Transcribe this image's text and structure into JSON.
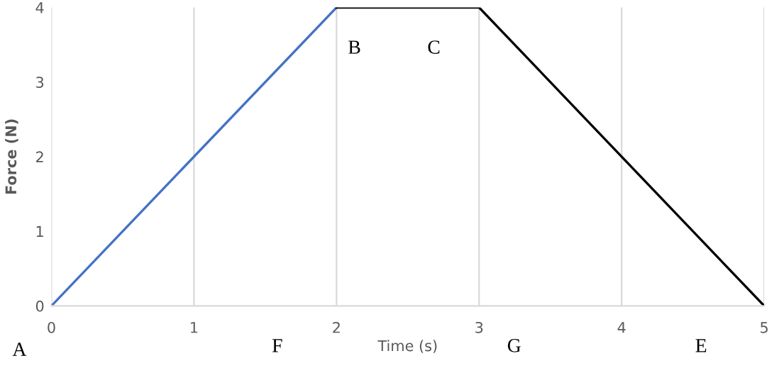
{
  "chart_data": {
    "type": "line",
    "xlabel": "Time (s)",
    "ylabel": "Force (N)",
    "series": [
      {
        "color": "#4472c4",
        "x": [
          0,
          2
        ],
        "values": [
          0,
          4
        ]
      },
      {
        "color": "#000000",
        "x": [
          2,
          3,
          5
        ],
        "values": [
          4,
          4,
          0
        ]
      }
    ],
    "xlim": [
      0,
      5
    ],
    "ylim": [
      0,
      4
    ],
    "xticks": [
      0,
      1,
      2,
      3,
      4,
      5
    ],
    "yticks": [
      0,
      1,
      2,
      3,
      4
    ],
    "grid": "x",
    "marker": "none",
    "line_style": "solid",
    "annotations": [
      "A",
      "B",
      "C",
      "F",
      "G",
      "E"
    ]
  }
}
